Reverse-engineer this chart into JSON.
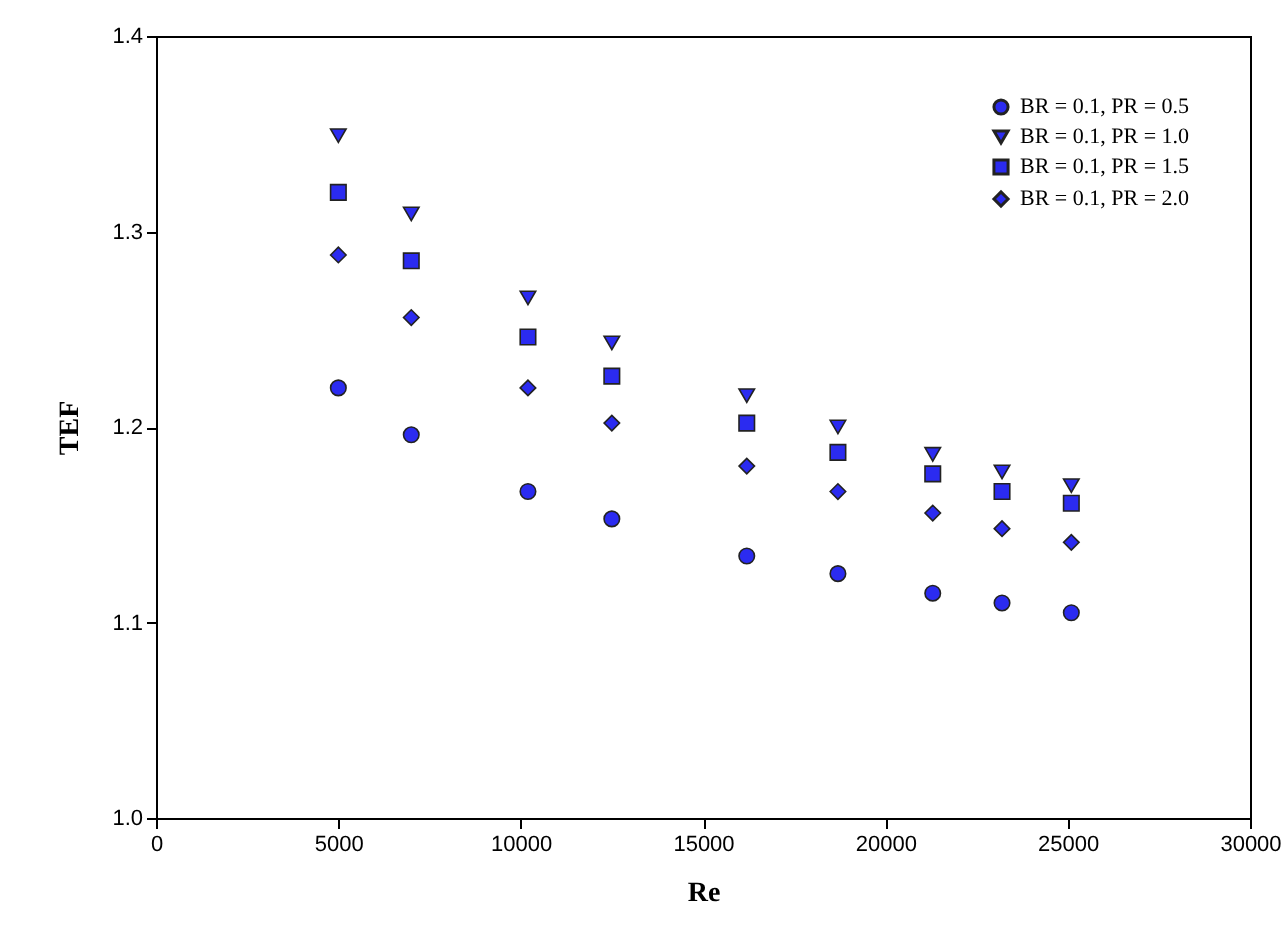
{
  "chart_data": {
    "type": "scatter",
    "xlabel": "Re",
    "ylabel": "TEF",
    "x": [
      5000,
      7000,
      10200,
      12500,
      16200,
      18700,
      21300,
      23200,
      25100
    ],
    "series": [
      {
        "name": "BR = 0.1, PR = 0.5",
        "color": "#2b2bf0",
        "marker": "circle",
        "values": [
          1.22,
          1.196,
          1.167,
          1.153,
          1.134,
          1.125,
          1.115,
          1.11,
          1.105
        ]
      },
      {
        "name": "BR = 0.1, PR = 1.0",
        "color": "#2b2bf0",
        "marker": "triangle",
        "values": [
          1.349,
          1.309,
          1.266,
          1.243,
          1.216,
          1.2,
          1.186,
          1.177,
          1.17
        ]
      },
      {
        "name": "BR = 0.1, PR = 1.5",
        "color": "#2b2bf0",
        "marker": "square",
        "values": [
          1.32,
          1.285,
          1.246,
          1.226,
          1.202,
          1.187,
          1.176,
          1.167,
          1.161
        ]
      },
      {
        "name": "BR = 0.1, PR = 2.0",
        "color": "#2b2bf0",
        "marker": "diamond",
        "values": [
          1.288,
          1.256,
          1.22,
          1.202,
          1.18,
          1.167,
          1.156,
          1.148,
          1.141
        ]
      }
    ],
    "xlim": [
      0,
      30000
    ],
    "xticks": [
      0,
      5000,
      10000,
      15000,
      20000,
      25000,
      30000
    ],
    "ylim": [
      1.0,
      1.4
    ],
    "yticks": [
      {
        "value": 1.0,
        "label": "1.0"
      },
      {
        "value": 1.1,
        "label": "1.1"
      },
      {
        "value": 1.2,
        "label": "1.2"
      },
      {
        "value": 1.3,
        "label": "1.3"
      },
      {
        "value": 1.4,
        "label": "1.4"
      }
    ],
    "grid": false,
    "legend": "top right"
  }
}
